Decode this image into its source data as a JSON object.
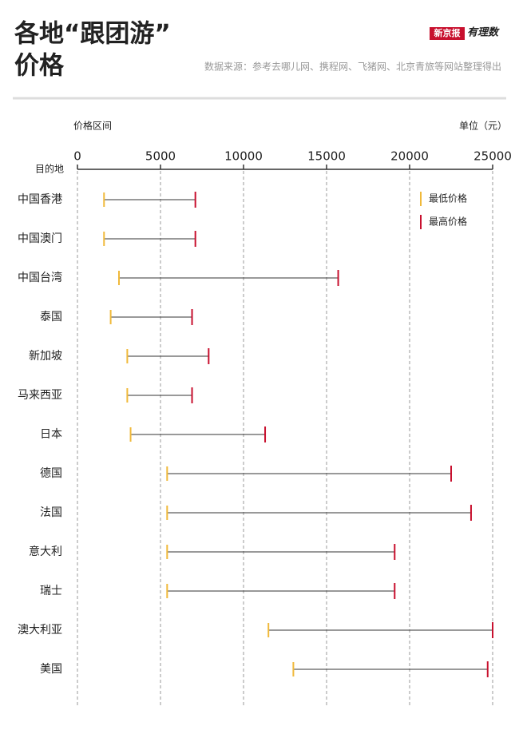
{
  "chart_data": {
    "type": "range",
    "title": [
      "各地“跟团游”",
      "价格"
    ],
    "brand": [
      "新京报",
      "有理数"
    ],
    "source": "数据来源：参考去哪儿网、携程网、飞猪网、北京青旅等网站整理得出",
    "x_axis_label": "价格区间",
    "unit_label": "单位（元）",
    "y_axis_label": "目的地",
    "categories": [
      "中国香港",
      "中国澳门",
      "中国台湾",
      "泰国",
      "新加坡",
      "马来西亚",
      "日本",
      "德国",
      "法国",
      "意大利",
      "瑞士",
      "澳大利亚",
      "美国"
    ],
    "series": [
      {
        "name": "最低价格",
        "color": "#f0b93a",
        "values": [
          1600,
          1600,
          2500,
          2000,
          3000,
          3000,
          3200,
          5400,
          5400,
          5400,
          5400,
          11500,
          13000
        ]
      },
      {
        "name": "最高价格",
        "color": "#c8102e",
        "values": [
          7100,
          7100,
          15700,
          6900,
          7900,
          6900,
          11300,
          22500,
          23700,
          19100,
          19100,
          25000,
          24700
        ]
      }
    ],
    "xlim": [
      0,
      25000
    ],
    "xticks": [
      0,
      5000,
      10000,
      15000,
      20000,
      25000
    ],
    "grid": true,
    "legend": "upper right"
  }
}
